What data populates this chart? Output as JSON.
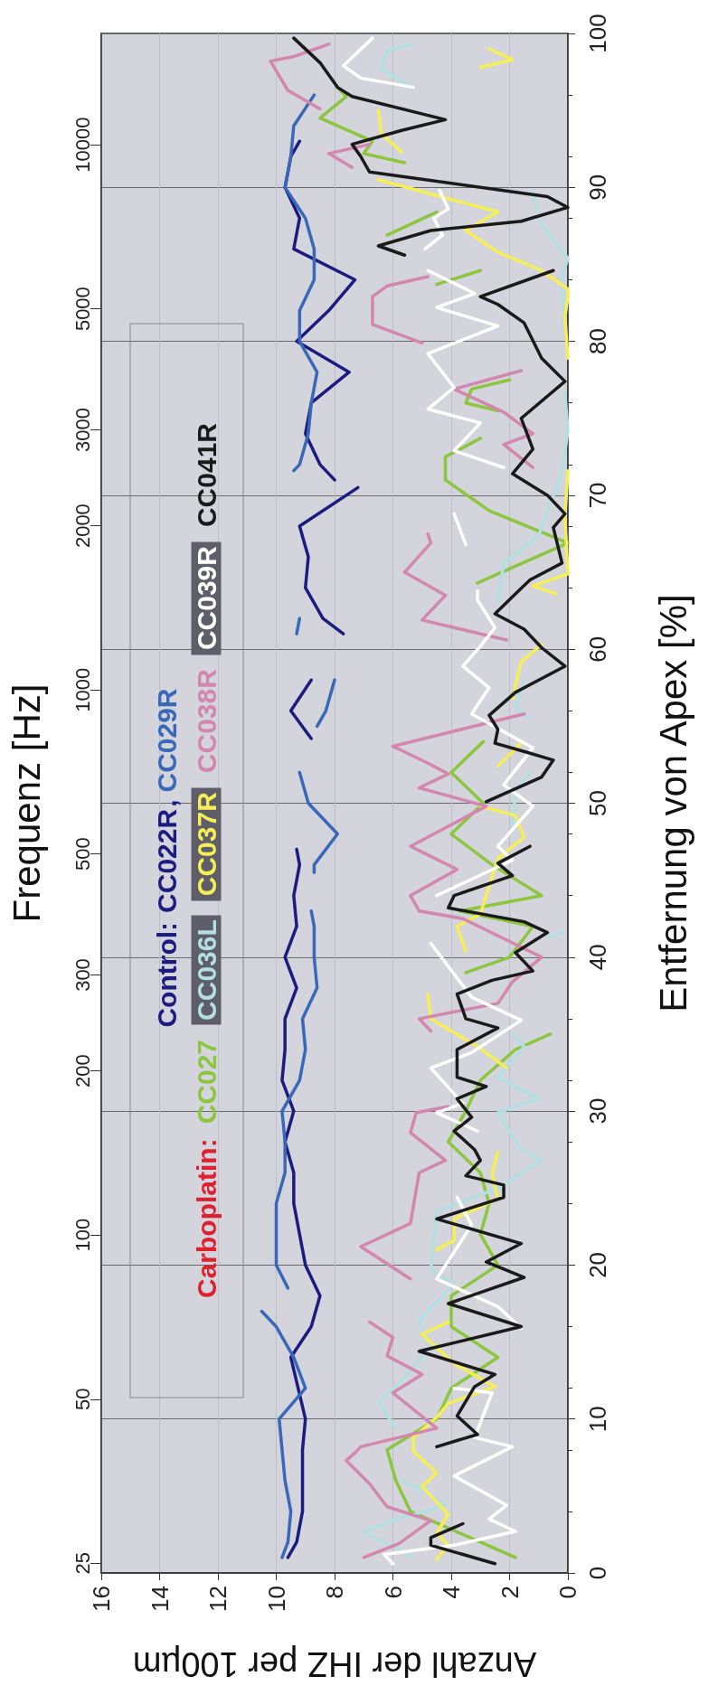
{
  "chart_data": {
    "type": "line",
    "xlabel": "Anzahl der IHZ per 100µm",
    "ylabel": "Entfernung von Apex [%]",
    "y2label": "Frequenz [Hz]",
    "xlim": [
      16,
      0
    ],
    "xticks": [
      16,
      14,
      12,
      10,
      8,
      6,
      4,
      2,
      0
    ],
    "ylim": [
      0,
      100
    ],
    "yticks": [
      0,
      10,
      20,
      30,
      40,
      50,
      60,
      70,
      80,
      90,
      100
    ],
    "y2lim": [
      24,
      16000
    ],
    "y2ticks": [
      25,
      50,
      100,
      200,
      300,
      500,
      1000,
      2000,
      3000,
      5000,
      10000
    ],
    "log": "y2",
    "grid": true,
    "legend": "left",
    "annotations": [
      "Control:",
      "Carboplatin:",
      ","
    ],
    "series": [
      {
        "name": "CC022R",
        "color": "#1c1c80",
        "values": [
          1,
          2,
          4,
          6,
          8,
          10,
          14,
          16,
          18,
          20,
          22,
          24,
          26,
          28,
          30,
          32,
          34,
          36,
          38,
          40,
          42,
          44,
          46,
          47,
          null,
          54.2,
          56,
          58,
          null,
          61,
          62,
          64,
          66,
          68,
          70.5,
          null,
          71,
          72,
          74,
          76,
          78,
          80,
          82,
          84,
          86,
          88,
          90,
          92,
          93
        ],
        "x": [
          9.6,
          9.3,
          9.1,
          9.1,
          9.1,
          9.0,
          9.5,
          8.8,
          8.5,
          9.0,
          9.2,
          9.4,
          9.4,
          9.7,
          9.4,
          9.8,
          9.7,
          9.7,
          9.3,
          9.7,
          9.3,
          9.4,
          9.2,
          9.3,
          null,
          8.8,
          9.5,
          8.8,
          null,
          7.7,
          8.4,
          9.0,
          8.9,
          9.2,
          7.2,
          null,
          8.0,
          8.5,
          9.0,
          8.8,
          7.5,
          9.3,
          8.2,
          7.3,
          9.4,
          9.2,
          9.7,
          9.5,
          9.2
        ]
      },
      {
        "name": "CC029R",
        "color": "#3a68b8",
        "values": [
          1,
          2,
          4,
          6,
          8,
          10,
          12,
          14,
          16,
          17,
          null,
          18.5,
          20,
          22,
          24,
          26,
          28,
          30,
          32,
          34,
          36,
          38,
          40,
          42,
          43,
          null,
          45.5,
          46,
          48,
          50,
          52,
          null,
          55,
          56,
          58,
          null,
          61,
          62,
          null,
          71.6,
          72,
          74,
          76,
          78,
          80,
          82,
          84,
          86,
          88,
          90,
          92,
          94,
          96
        ],
        "x": [
          9.8,
          9.6,
          9.5,
          9.7,
          9.8,
          9.9,
          9.0,
          9.4,
          10.0,
          10.5,
          null,
          9.6,
          10.0,
          10.0,
          10.0,
          9.7,
          9.7,
          9.8,
          9.2,
          9.0,
          9.1,
          8.6,
          8.7,
          8.7,
          8.8,
          null,
          8.7,
          8.7,
          7.9,
          8.9,
          9.2,
          null,
          8.6,
          8.3,
          8.0,
          null,
          9.3,
          9.2,
          null,
          9.4,
          9.2,
          8.9,
          8.8,
          8.6,
          9.2,
          9.2,
          8.7,
          8.7,
          9.0,
          9.7,
          9.5,
          9.4,
          8.7
        ]
      },
      {
        "name": "CC027",
        "color": "#8cc63f",
        "values": [
          1,
          2,
          4,
          6,
          8,
          10,
          12,
          14,
          16,
          18,
          20,
          22,
          24,
          26,
          28,
          30,
          32,
          34,
          35,
          null,
          39,
          40,
          42,
          43,
          44,
          46,
          48,
          50,
          52,
          54,
          null,
          64.3,
          66.9,
          69,
          71,
          72.5,
          73.7,
          null,
          75.5,
          76,
          76.9,
          77.5,
          null,
          83.7,
          84.6,
          null,
          86.9,
          88.4,
          null,
          91.6,
          92.2,
          93,
          94.5,
          95.9,
          96.5
        ],
        "x": [
          1.8,
          3.0,
          5.4,
          5.9,
          6.2,
          4.5,
          4.0,
          2.4,
          4.0,
          4.0,
          2.4,
          3.0,
          2.7,
          3.0,
          4.1,
          3.5,
          3.0,
          1.8,
          0.6,
          null,
          3.5,
          2.0,
          1.2,
          3.7,
          0.9,
          2.6,
          4.0,
          2.9,
          4.0,
          2.9,
          null,
          3.1,
          0.0,
          2.7,
          4.2,
          4.2,
          3.0,
          null,
          2.4,
          3.5,
          3.3,
          2.0,
          null,
          4.5,
          3.0,
          null,
          6.2,
          4.5,
          null,
          5.6,
          7.0,
          6.7,
          8.5,
          7.6,
          7.9
        ]
      },
      {
        "name": "CC036L",
        "color": "#b4dfe2",
        "values": [
          1,
          2.7,
          3.4,
          4.4,
          5.3,
          6,
          null,
          9.4,
          11.1,
          12.3,
          14.7,
          16.4,
          17.6,
          18.8,
          19.7,
          23.5,
          25,
          26.8,
          27.5,
          29.9,
          30.8,
          32.2,
          34.2,
          35,
          null,
          41.3,
          41.6,
          null,
          48.4,
          50.7,
          52,
          null,
          55.5,
          56.2,
          58,
          null,
          63,
          65.6,
          67.4,
          71.5,
          74.2,
          76.6,
          null,
          81.2,
          84.2,
          85.4,
          87.6,
          89.7,
          null,
          96.6,
          97.7,
          98.9,
          99.3
        ],
        "x": [
          5.3,
          7.0,
          6.0,
          4.2,
          4.9,
          5.7,
          null,
          5.9,
          6.5,
          5.8,
          4.7,
          5.1,
          4.5,
          3.9,
          4.7,
          4.5,
          2.4,
          0.9,
          1.6,
          2.4,
          1.0,
          2.4,
          1.5,
          1.9,
          null,
          0.7,
          0.2,
          null,
          1.9,
          1.8,
          1.3,
          null,
          1.3,
          1.8,
          1.5,
          null,
          2.4,
          2.2,
          1.0,
          0.2,
          0.0,
          0.1,
          null,
          0.1,
          0.2,
          0.0,
          0.9,
          1.2,
          null,
          5.4,
          6.4,
          6.2,
          5.3
        ]
      },
      {
        "name": "CC037R",
        "color": "#f5ee55",
        "values": [
          0.9,
          1.8,
          2.6,
          3.8,
          5.6,
          6.5,
          7.9,
          8.8,
          10.1,
          11,
          12.1,
          13.6,
          15.5,
          16.3,
          null,
          21,
          21.6,
          23,
          24.3,
          26,
          27.3,
          null,
          32.8,
          34.2,
          36,
          37.6,
          null,
          40.4,
          42,
          42.8,
          46.4,
          47.8,
          49.2,
          49.8,
          null,
          52.4,
          53.9,
          null,
          56.8,
          59.2,
          60.3,
          null,
          63.6,
          64.1,
          64.9,
          68.6,
          71.6,
          null,
          78.9,
          81.6,
          82.9,
          83.4,
          84.6,
          85.8,
          87.2,
          88.4,
          90.5,
          null,
          92.3,
          93.5,
          95,
          null,
          97.8,
          98.3,
          99
        ],
        "x": [
          4.5,
          4.1,
          4.5,
          4.1,
          5.0,
          4.5,
          5.3,
          5.3,
          4.5,
          4.1,
          2.5,
          3.9,
          5.0,
          4.1,
          null,
          4.5,
          3.9,
          3.9,
          2.4,
          2.6,
          2.4,
          null,
          2.1,
          3.1,
          4.7,
          4.8,
          null,
          3.5,
          3.8,
          3.0,
          2.4,
          1.5,
          1.8,
          3.0,
          null,
          2.4,
          1.6,
          null,
          1.9,
          1.6,
          0.9,
          null,
          0.4,
          1.2,
          0.0,
          0.1,
          0.0,
          null,
          0.0,
          0.1,
          0.0,
          0.0,
          0.9,
          2.4,
          3.5,
          2.4,
          6.5,
          null,
          5.7,
          6.4,
          6.5,
          null,
          3.0,
          1.9,
          2.7
        ]
      },
      {
        "name": "CC038R",
        "color": "#d386ae",
        "values": [
          1,
          1.9,
          3.4,
          4.3,
          5.8,
          7.3,
          7.8,
          8.2,
          9.4,
          11.7,
          12.9,
          14.1,
          15.3,
          16.3,
          null,
          19.1,
          21.2,
          22.7,
          26,
          26.8,
          28.6,
          29.9,
          30.3,
          null,
          35.2,
          36,
          37,
          38.4,
          40,
          42.5,
          43,
          44,
          45.7,
          47.2,
          49.8,
          51,
          51.9,
          52.6,
          53.7,
          55.8,
          null,
          60.6,
          61.9,
          63.5,
          65,
          66.9,
          67.5,
          null,
          71.8,
          73.3,
          74,
          75.4,
          76.9,
          78.1,
          null,
          79.9,
          81.1,
          82.9,
          83.6,
          84.2,
          null,
          91.3,
          92.2,
          92.8,
          null,
          95.1,
          96.3,
          98.2,
          98.5,
          99.3
        ],
        "x": [
          7.0,
          5.8,
          4.7,
          6.2,
          6.8,
          7.6,
          7.3,
          7.1,
          4.5,
          6.0,
          5.0,
          6.2,
          6.0,
          6.8,
          null,
          5.4,
          7.1,
          5.4,
          5.1,
          4.2,
          5.4,
          5.2,
          4.1,
          null,
          4.7,
          5.1,
          2.4,
          1.9,
          0.9,
          3.6,
          5.1,
          5.4,
          3.8,
          5.4,
          2.8,
          5.1,
          4.1,
          4.8,
          6.0,
          1.5,
          null,
          2.1,
          5.0,
          4.2,
          5.6,
          4.7,
          4.8,
          null,
          1.2,
          2.2,
          1.2,
          2.2,
          3.9,
          1.6,
          null,
          5.0,
          6.7,
          6.7,
          6.2,
          4.8,
          null,
          7.4,
          8.2,
          6.8,
          null,
          8.5,
          9.6,
          10.2,
          9.4,
          8.2
        ]
      },
      {
        "name": "CC039R",
        "color": "#ffffff",
        "values": [
          0.6,
          1.2,
          1.8,
          2.7,
          3.5,
          4.4,
          6.3,
          8.2,
          8.8,
          11.7,
          12,
          null,
          15.9,
          17.3,
          19.1,
          22.6,
          24.4,
          null,
          28.7,
          29.9,
          30.5,
          32.8,
          33.8,
          35.9,
          37.4,
          40.9,
          null,
          44,
          46.3,
          47.2,
          49.8,
          51.2,
          53.6,
          55.8,
          57.5,
          58.9,
          60.2,
          61.4,
          63.2,
          63.8,
          null,
          66.8,
          68.8,
          null,
          71.8,
          72.9,
          74.7,
          75.6,
          77,
          79.2,
          81,
          82.2,
          83.1,
          83.4,
          84.6,
          null,
          86,
          86.9,
          88,
          88.6,
          89.8,
          null,
          96.5,
          97.1,
          97.9,
          99.7
        ],
        "x": [
          6.0,
          6.3,
          3.9,
          1.8,
          2.7,
          2.1,
          3.9,
          1.9,
          3.2,
          2.6,
          3.9,
          null,
          1.6,
          2.4,
          4.5,
          3.3,
          3.8,
          null,
          3.1,
          4.5,
          3.6,
          4.7,
          3.3,
          1.6,
          3.3,
          4.7,
          null,
          4.5,
          1.9,
          2.4,
          1.2,
          2.2,
          1.2,
          3.3,
          2.7,
          3.6,
          3.0,
          2.5,
          3.1,
          3.1,
          null,
          3.5,
          3.9,
          null,
          2.2,
          3.9,
          3.0,
          4.8,
          3.9,
          4.8,
          2.4,
          4.5,
          3.2,
          3.5,
          4.8,
          null,
          4.9,
          4.3,
          4.6,
          4.1,
          4.4,
          null,
          5.3,
          7.1,
          7.7,
          6.7
        ]
      },
      {
        "name": "CC041R",
        "color": "#1a1a1a",
        "values": [
          0.6,
          1.8,
          2.3,
          3.2,
          null,
          8.2,
          9.0,
          10.2,
          12.1,
          12.9,
          14.4,
          16,
          17.5,
          19.2,
          20.2,
          21.4,
          23,
          24.4,
          25.2,
          25.8,
          26.8,
          27.5,
          28.7,
          29.6,
          30.8,
          31.6,
          32.2,
          34,
          35.4,
          36,
          37.6,
          38.5,
          39.1,
          40.3,
          41.6,
          42.3,
          43.2,
          44,
          45.3,
          46.1,
          47.2,
          null,
          50.1,
          51.7,
          52.8,
          53.3,
          53.9,
          54.8,
          55.7,
          57.2,
          58.9,
          60.1,
          61.3,
          62.3,
          63.6,
          64.5,
          65.6,
          67.9,
          68.8,
          70,
          71.4,
          73,
          75,
          77.4,
          78.9,
          81.2,
          82.4,
          82.9,
          84.6,
          null,
          85.6,
          86.2,
          87.2,
          87.8,
          88.7,
          89.4,
          91,
          92,
          92.8,
          93.7,
          94.4,
          95.9,
          96.5,
          98.1,
          99.7
        ],
        "x": [
          2.5,
          4.7,
          4.7,
          3.6,
          null,
          4.5,
          3.1,
          3.8,
          3.2,
          2.5,
          5.1,
          1.6,
          4.1,
          1.5,
          2.8,
          1.6,
          4.5,
          2.2,
          2.2,
          3.5,
          3.0,
          3.2,
          3.9,
          3.3,
          3.8,
          2.8,
          3.8,
          3.8,
          2.4,
          3.5,
          3.8,
          2.6,
          1.2,
          1.8,
          0.7,
          1.5,
          4.1,
          3.9,
          1.9,
          2.4,
          1.3,
          null,
          2.8,
          0.9,
          0.5,
          1.4,
          2.5,
          2.4,
          2.7,
          1.8,
          0.1,
          0.9,
          1.5,
          2.5,
          1.8,
          1.3,
          0.2,
          0.5,
          0.1,
          0.7,
          1.9,
          1.2,
          1.6,
          0.1,
          0.9,
          1.5,
          2.4,
          3.0,
          0.5,
          null,
          5.6,
          6.5,
          4.7,
          1.6,
          0.0,
          0.7,
          6.8,
          7.1,
          7.4,
          5.7,
          4.2,
          7.4,
          7.9,
          8.5,
          9.4
        ]
      }
    ]
  }
}
